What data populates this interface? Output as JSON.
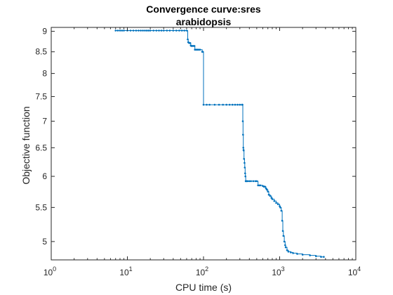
{
  "chart_data": {
    "type": "line",
    "title_line1": "Convergence curve:sres",
    "title_line2": "arabidopsis",
    "xlabel": "CPU time (s)",
    "ylabel": "Objective function",
    "x_scale": "log",
    "y_scale": "log",
    "xlim": [
      1,
      10000
    ],
    "ylim": [
      4.75,
      9.1
    ],
    "x_ticks": [
      1,
      10,
      100,
      1000,
      10000
    ],
    "x_tick_labels": [
      {
        "base": "10",
        "exp": "0"
      },
      {
        "base": "10",
        "exp": "1"
      },
      {
        "base": "10",
        "exp": "2"
      },
      {
        "base": "10",
        "exp": "3"
      },
      {
        "base": "10",
        "exp": "4"
      }
    ],
    "y_ticks": [
      5,
      5.5,
      6,
      6.5,
      7,
      7.5,
      8,
      8.5,
      9
    ],
    "y_tick_labels": [
      "5",
      "5.5",
      "6",
      "6.5",
      "7",
      "7.5",
      "8",
      "8.5",
      "9"
    ],
    "grid": false,
    "line_color": "#0072BD",
    "series": [
      {
        "x": [
          7,
          7.5,
          8,
          8.5,
          9,
          10,
          11,
          12,
          13,
          14,
          15,
          16,
          17,
          18,
          19,
          20,
          22,
          24,
          26,
          28,
          30,
          33,
          36,
          40,
          44,
          48,
          52,
          56,
          60,
          62,
          63,
          64,
          65,
          67,
          68,
          69,
          70,
          72,
          74,
          76,
          77,
          80,
          83,
          86,
          90,
          96,
          98,
          100,
          110,
          120,
          140,
          160,
          180,
          200,
          220,
          240,
          260,
          280,
          300,
          320,
          325,
          328,
          330,
          333,
          335,
          337,
          340,
          345,
          348,
          352,
          355,
          358,
          360,
          370,
          380,
          400,
          420,
          450,
          480,
          500,
          520,
          540,
          560,
          600,
          620,
          640,
          660,
          680,
          700,
          720,
          750,
          780,
          800,
          850,
          900,
          950,
          1000,
          1020,
          1050,
          1080,
          1100,
          1120,
          1150,
          1180,
          1200,
          1250,
          1300,
          1400,
          1500,
          1700,
          2000,
          2500,
          3000,
          3500,
          3800
        ],
        "y": [
          9.02,
          9.02,
          9.02,
          9.02,
          9.02,
          9.02,
          9.02,
          9.02,
          9.02,
          9.02,
          9.02,
          9.02,
          9.02,
          9.02,
          9.02,
          9.02,
          9.02,
          9.02,
          9.02,
          9.02,
          9.02,
          9.02,
          9.02,
          9.02,
          9.02,
          9.02,
          9.02,
          9.02,
          9.02,
          8.8,
          8.73,
          8.72,
          8.71,
          8.71,
          8.65,
          8.64,
          8.64,
          8.64,
          8.64,
          8.64,
          8.55,
          8.55,
          8.55,
          8.55,
          8.55,
          8.5,
          8.5,
          7.33,
          7.33,
          7.33,
          7.33,
          7.33,
          7.33,
          7.33,
          7.33,
          7.33,
          7.33,
          7.33,
          7.33,
          7.33,
          7.33,
          7.0,
          6.74,
          6.5,
          6.46,
          6.45,
          6.3,
          6.23,
          6.15,
          6.05,
          6.0,
          5.92,
          5.92,
          5.92,
          5.92,
          5.92,
          5.92,
          5.92,
          5.92,
          5.92,
          5.85,
          5.85,
          5.85,
          5.84,
          5.83,
          5.83,
          5.8,
          5.78,
          5.75,
          5.7,
          5.68,
          5.65,
          5.63,
          5.6,
          5.57,
          5.55,
          5.52,
          5.5,
          5.45,
          5.3,
          5.15,
          5.08,
          5.0,
          4.95,
          4.92,
          4.88,
          4.86,
          4.85,
          4.84,
          4.83,
          4.82,
          4.81,
          4.8,
          4.79,
          4.79
        ]
      }
    ]
  }
}
